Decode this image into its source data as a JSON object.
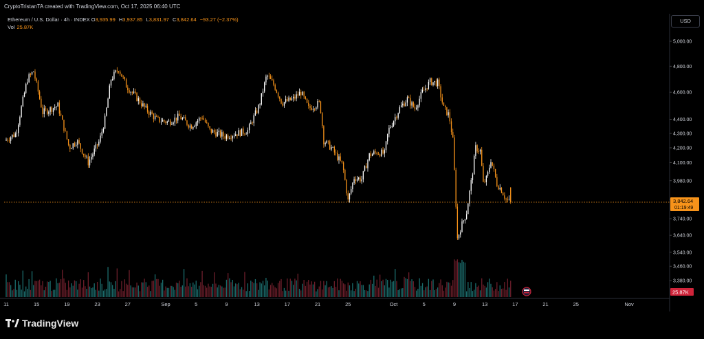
{
  "header": {
    "attribution": "CryptoTristanTA created with TradingView.com, Oct 17, 2025 06:40 UTC"
  },
  "legend": {
    "symbol": "Ethereum / U.S. Dollar · 4h · INDEX",
    "open_key": "O",
    "open": "3,935.99",
    "high_key": "H",
    "high": "3,937.85",
    "low_key": "L",
    "low": "3,831.97",
    "close_key": "C",
    "close": "3,842.64",
    "change": "−93.27 (−2.37%)",
    "vol_key": "Vol",
    "vol": "25.87K"
  },
  "currency": "USD",
  "brand": {
    "name": "TradingView"
  },
  "colors": {
    "up": "#ffffff",
    "down": "#f7931a",
    "vol_up": "#1b6b6b",
    "vol_down": "#6b1e2a",
    "price_line": "#f7931a",
    "grid": "#000000",
    "axis_text": "#d1d4dc"
  },
  "chart_data": {
    "type": "candlestick",
    "title": "Ethereum / U.S. Dollar · 4h · INDEX",
    "scale": "log",
    "ylim": [
      3300,
      5150
    ],
    "y_ticks": [
      5000,
      4800,
      4600,
      4400,
      4300,
      4200,
      4100,
      3980,
      3860,
      3740,
      3640,
      3540,
      3460,
      3380
    ],
    "y_tick_labels": [
      "5,000.00",
      "4,800.00",
      "4,600.00",
      "4,400.00",
      "4,300.00",
      "4,200.00",
      "4,100.00",
      "3,980.00",
      "3,860.00",
      "3,740.00",
      "3,640.00",
      "3,540.00",
      "3,460.00",
      "3,380.00"
    ],
    "x_ticks": [
      "11",
      "15",
      "19",
      "23",
      "27",
      "Sep",
      "5",
      "9",
      "13",
      "17",
      "21",
      "25",
      "Oct",
      "5",
      "9",
      "13",
      "17",
      "21",
      "25",
      "Nov"
    ],
    "x_tick_day_index": [
      0,
      4,
      8,
      12,
      16,
      21,
      25,
      29,
      33,
      37,
      41,
      45,
      51,
      55,
      59,
      63,
      67,
      71,
      75,
      82
    ],
    "last_price": 3842.64,
    "last_price_label": "3,842.64",
    "countdown": "01:19:49",
    "last_volume_label": "25.87K",
    "series_path": [
      [
        0,
        4250
      ],
      [
        1.5,
        4300
      ],
      [
        3,
        4700
      ],
      [
        3.8,
        4760
      ],
      [
        5,
        4450
      ],
      [
        7,
        4500
      ],
      [
        8.5,
        4200
      ],
      [
        9.5,
        4250
      ],
      [
        11,
        4100
      ],
      [
        12.5,
        4250
      ],
      [
        13.2,
        4400
      ],
      [
        14,
        4700
      ],
      [
        15,
        4780
      ],
      [
        16,
        4650
      ],
      [
        17.5,
        4550
      ],
      [
        18.5,
        4480
      ],
      [
        20,
        4400
      ],
      [
        21.5,
        4380
      ],
      [
        23,
        4420
      ],
      [
        24.5,
        4350
      ],
      [
        26,
        4420
      ],
      [
        27,
        4320
      ],
      [
        29,
        4280
      ],
      [
        30.5,
        4300
      ],
      [
        32,
        4320
      ],
      [
        33.5,
        4500
      ],
      [
        34.5,
        4730
      ],
      [
        35.5,
        4650
      ],
      [
        36.5,
        4520
      ],
      [
        38,
        4550
      ],
      [
        39,
        4600
      ],
      [
        40,
        4480
      ],
      [
        41.5,
        4520
      ],
      [
        42,
        4250
      ],
      [
        43,
        4200
      ],
      [
        44.5,
        4080
      ],
      [
        45.2,
        3850
      ],
      [
        46,
        4000
      ],
      [
        47,
        3990
      ],
      [
        48,
        4150
      ],
      [
        49,
        4170
      ],
      [
        50,
        4160
      ],
      [
        50.5,
        4320
      ],
      [
        52,
        4480
      ],
      [
        53,
        4550
      ],
      [
        54,
        4480
      ],
      [
        55,
        4600
      ],
      [
        56,
        4680
      ],
      [
        57,
        4670
      ],
      [
        57.8,
        4480
      ],
      [
        58.5,
        4430
      ],
      [
        59,
        4250
      ],
      [
        59.6,
        3620
      ],
      [
        60,
        3680
      ],
      [
        60.8,
        3780
      ],
      [
        61.5,
        4000
      ],
      [
        62,
        4200
      ],
      [
        62.6,
        4180
      ],
      [
        63,
        3960
      ],
      [
        63.5,
        4000
      ],
      [
        64,
        4120
      ],
      [
        64.8,
        3960
      ],
      [
        65.4,
        3920
      ],
      [
        66,
        3860
      ],
      [
        66.5,
        3845
      ]
    ]
  }
}
